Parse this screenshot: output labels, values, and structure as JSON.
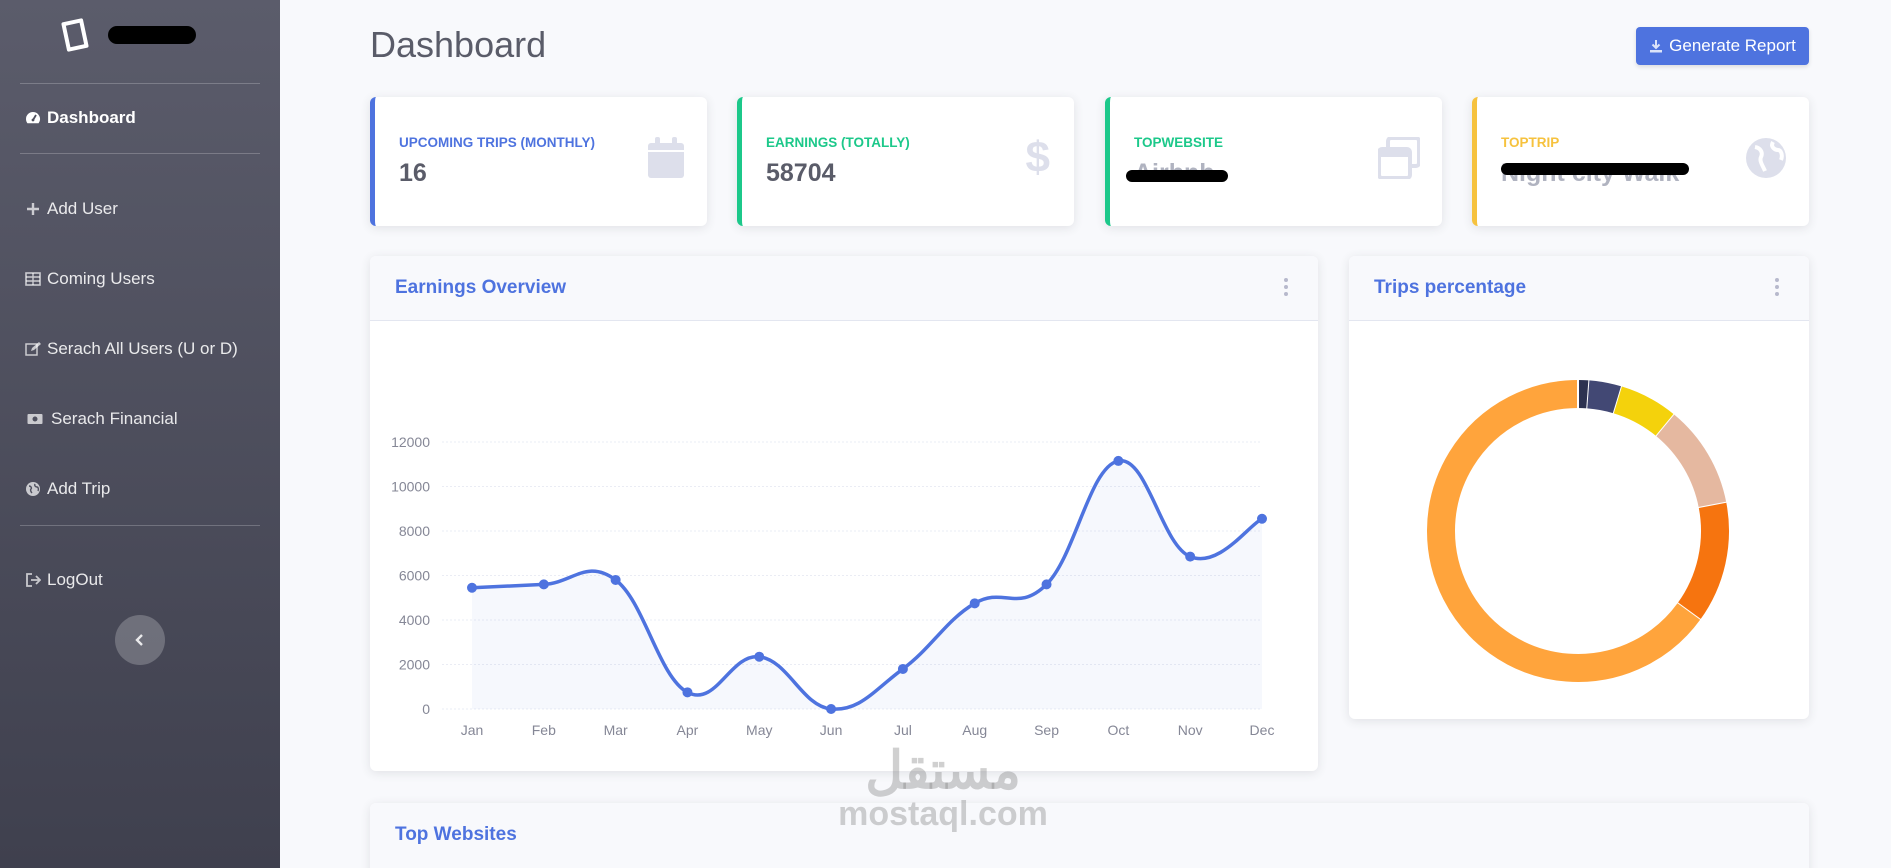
{
  "sidebar": {
    "brand_name_redacted": "",
    "items": [
      {
        "label": "Dashboard",
        "icon": "tachometer-icon",
        "active": true
      },
      {
        "label": "Add User",
        "icon": "plus-icon"
      },
      {
        "label": "Coming Users",
        "icon": "table-icon"
      },
      {
        "label": "Serach All Users (U or D)",
        "icon": "edit-icon"
      },
      {
        "label": "Serach Financial",
        "icon": "money-bill-icon"
      },
      {
        "label": "Add Trip",
        "icon": "globe-icon"
      },
      {
        "label": "LogOut",
        "icon": "sign-out-icon"
      }
    ],
    "collapse_icon": "chevron-left-icon"
  },
  "header": {
    "title": "Dashboard",
    "generate_report_label": "Generate Report",
    "generate_report_icon": "download-icon"
  },
  "cards": [
    {
      "label": "Upcoming Trips (Monthly)",
      "value": "16",
      "color": "#4e73df",
      "icon": "calendar-icon"
    },
    {
      "label": "Earnings (Totally)",
      "value": "58704",
      "color": "#1cc88a",
      "icon": "dollar-icon"
    },
    {
      "label": "TopWebsite",
      "value": "Airbnb",
      "color": "#1cc88a",
      "icon": "window-restore-icon"
    },
    {
      "label": "TopTrip",
      "value": "Night city Walk",
      "color": "#f6c23e",
      "icon": "globe-icon"
    }
  ],
  "earnings_panel": {
    "title": "Earnings Overview"
  },
  "trips_panel": {
    "title": "Trips percentage"
  },
  "websites_panel": {
    "title": "Top Websites"
  },
  "watermark": {
    "arabic": "مستقل",
    "latin": "mostaql.com"
  },
  "chart_data": [
    {
      "type": "area",
      "title": "",
      "categories": [
        "Jan",
        "Feb",
        "Mar",
        "Apr",
        "May",
        "Jun",
        "Jul",
        "Aug",
        "Sep",
        "Oct",
        "Nov",
        "Dec"
      ],
      "series": [
        {
          "values": [
            5450,
            5600,
            5800,
            750,
            2350,
            0,
            1800,
            4750,
            5600,
            11150,
            6850,
            8550
          ],
          "color": "#4e73df"
        }
      ],
      "yticks": [
        0,
        2000,
        4000,
        6000,
        8000,
        10000,
        12000
      ],
      "ylim": [
        0,
        12000
      ],
      "grid": true,
      "xlabel": "",
      "ylabel": ""
    },
    {
      "type": "pie",
      "title": "",
      "donut": true,
      "slices": [
        {
          "value": 1.2,
          "color": "#2d3250"
        },
        {
          "value": 3.5,
          "color": "#424874"
        },
        {
          "value": 6.3,
          "color": "#f4d20c"
        },
        {
          "value": 11.0,
          "color": "#e5b8a0"
        },
        {
          "value": 13.0,
          "color": "#f6740f"
        },
        {
          "value": 65.0,
          "color": "#ffa43c"
        }
      ]
    }
  ]
}
